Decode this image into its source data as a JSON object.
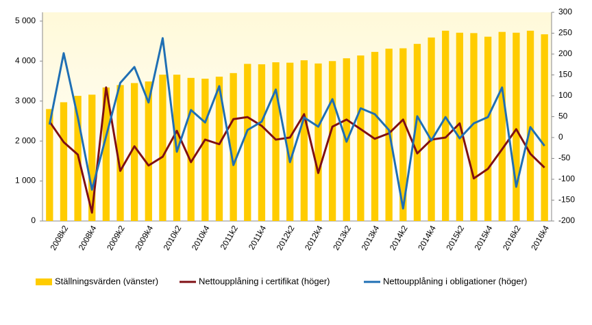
{
  "chart_data": {
    "type": "bar-line",
    "categories": [
      null,
      "2008k2",
      null,
      "2008k4",
      null,
      "2009k2",
      null,
      "2009k4",
      null,
      "2010k2",
      null,
      "2010k4",
      null,
      "2011k2",
      null,
      "2011k4",
      null,
      "2012k2",
      null,
      "2012k4",
      null,
      "2013k2",
      null,
      "2013k4",
      null,
      "2014k2",
      null,
      "2014k4",
      null,
      "2015k2",
      null,
      "2015k4",
      null,
      "2016k2",
      null,
      "2016k4"
    ],
    "series": [
      {
        "name": "Ställningsvärden (vänster)",
        "type": "bar",
        "color": "#ffcc00",
        "values": [
          2800,
          2970,
          3130,
          3160,
          3340,
          3400,
          3450,
          3490,
          3660,
          3660,
          3580,
          3560,
          3610,
          3700,
          3930,
          3920,
          3970,
          3960,
          4020,
          3940,
          4000,
          4070,
          4140,
          4230,
          4310,
          4320,
          4430,
          4590,
          4760,
          4710,
          4700,
          4610,
          4730,
          4710,
          4760,
          4670
        ]
      },
      {
        "name": "Nettoupplåning i certifikat (höger)",
        "type": "line",
        "axis": "y2",
        "color": "#7f0f14",
        "values": [
          38,
          -11,
          -41,
          -180,
          120,
          -80,
          -21,
          -67,
          -46,
          16,
          -59,
          -5,
          -16,
          44,
          49,
          28,
          -5,
          0,
          56,
          -85,
          26,
          43,
          20,
          -3,
          10,
          43,
          -38,
          -5,
          0,
          34,
          -98,
          -75,
          -28,
          20,
          -39,
          -72
        ]
      },
      {
        "name": "Nettoupplåning i obligationer (höger)",
        "type": "line",
        "axis": "y2",
        "color": "#1f6fb4",
        "values": [
          31,
          202,
          48,
          -125,
          3,
          131,
          169,
          84,
          238,
          -34,
          66,
          36,
          123,
          -66,
          18,
          38,
          115,
          -59,
          48,
          26,
          92,
          -10,
          70,
          56,
          18,
          -170,
          51,
          -7,
          49,
          -2,
          34,
          49,
          120,
          -118,
          25,
          -20
        ]
      }
    ],
    "ylim": [
      0,
      5220
    ],
    "yticks": [
      0,
      {
        "value": 1000,
        "label": "1 000"
      },
      {
        "value": 2000,
        "label": "2 000"
      },
      {
        "value": 3000,
        "label": "3 000"
      },
      {
        "value": 4000,
        "label": "4 000"
      },
      {
        "value": 5000,
        "label": "5 000"
      }
    ],
    "y2lim": [
      -200,
      300
    ],
    "y2ticks": [
      -200,
      -150,
      -100,
      -50,
      0,
      50,
      100,
      150,
      200,
      250,
      300
    ],
    "legend": "bottom"
  }
}
